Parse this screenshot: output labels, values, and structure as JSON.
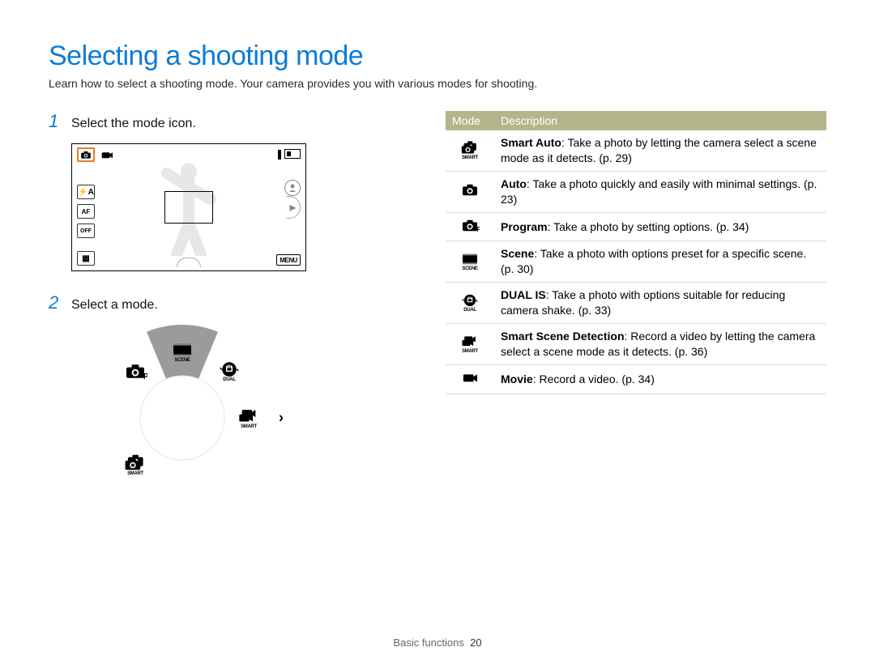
{
  "title": "Selecting a shooting mode",
  "subtitle": "Learn how to select a shooting mode. Your camera provides you with various modes for shooting.",
  "steps": {
    "s1_num": "1",
    "s1_text": "Select the mode icon.",
    "s2_num": "2",
    "s2_text": "Select a mode."
  },
  "camera_screen": {
    "left_labels": {
      "flash": "⚡A",
      "af": "AF",
      "off": "OFF"
    },
    "menu_label": "MENU"
  },
  "table": {
    "header_mode": "Mode",
    "header_desc": "Description",
    "rows": [
      {
        "icon": "smart-auto",
        "label": "SMART",
        "bold": "Smart Auto",
        "text": ": Take a photo by letting the camera select a scene mode as it detects. (p. 29)"
      },
      {
        "icon": "auto",
        "label": "",
        "bold": "Auto",
        "text": ": Take a photo quickly and easily with minimal settings. (p. 23)"
      },
      {
        "icon": "program",
        "label": "",
        "bold": "Program",
        "text": ": Take a photo by setting options. (p. 34)"
      },
      {
        "icon": "scene",
        "label": "SCENE",
        "bold": "Scene",
        "text": ": Take a photo with options preset for a specific scene. (p. 30)"
      },
      {
        "icon": "dual-is",
        "label": "DUAL",
        "bold": "DUAL IS",
        "text": ": Take a photo with options suitable for reducing camera shake. (p. 33)"
      },
      {
        "icon": "smart-scene",
        "label": "SMART",
        "bold": "Smart Scene Detection",
        "text": ": Record a video by letting the camera select a scene mode as it detects. (p. 36)"
      },
      {
        "icon": "movie",
        "label": "",
        "bold": "Movie",
        "text": ": Record a video. (p. 34)"
      }
    ]
  },
  "dial": {
    "icons": [
      {
        "name": "auto-icon",
        "angle": 270,
        "label": "",
        "type": "camera"
      },
      {
        "name": "program-icon",
        "angle": 315,
        "label": "",
        "type": "camera-p"
      },
      {
        "name": "scene-icon",
        "angle": 0,
        "label": "SCENE",
        "type": "scene"
      },
      {
        "name": "dual-is-icon",
        "angle": 45,
        "label": "DUAL",
        "type": "hand"
      },
      {
        "name": "smart-movie-icon",
        "angle": 90,
        "label": "SMART",
        "type": "movie-double"
      },
      {
        "name": "smart-auto-icon",
        "angle": 225,
        "label": "SMART",
        "type": "camera-double"
      }
    ],
    "highlight_color": "#9b9b9b",
    "radius_outer": 115,
    "radius_inner": 50,
    "icon_radius": 82
  },
  "footer": {
    "section": "Basic functions",
    "page": "20"
  },
  "colors": {
    "title": "#0b7bd6",
    "table_header_bg": "#b5b58b",
    "table_header_fg": "#ffffff",
    "highlight_orange": "#e67e22"
  }
}
